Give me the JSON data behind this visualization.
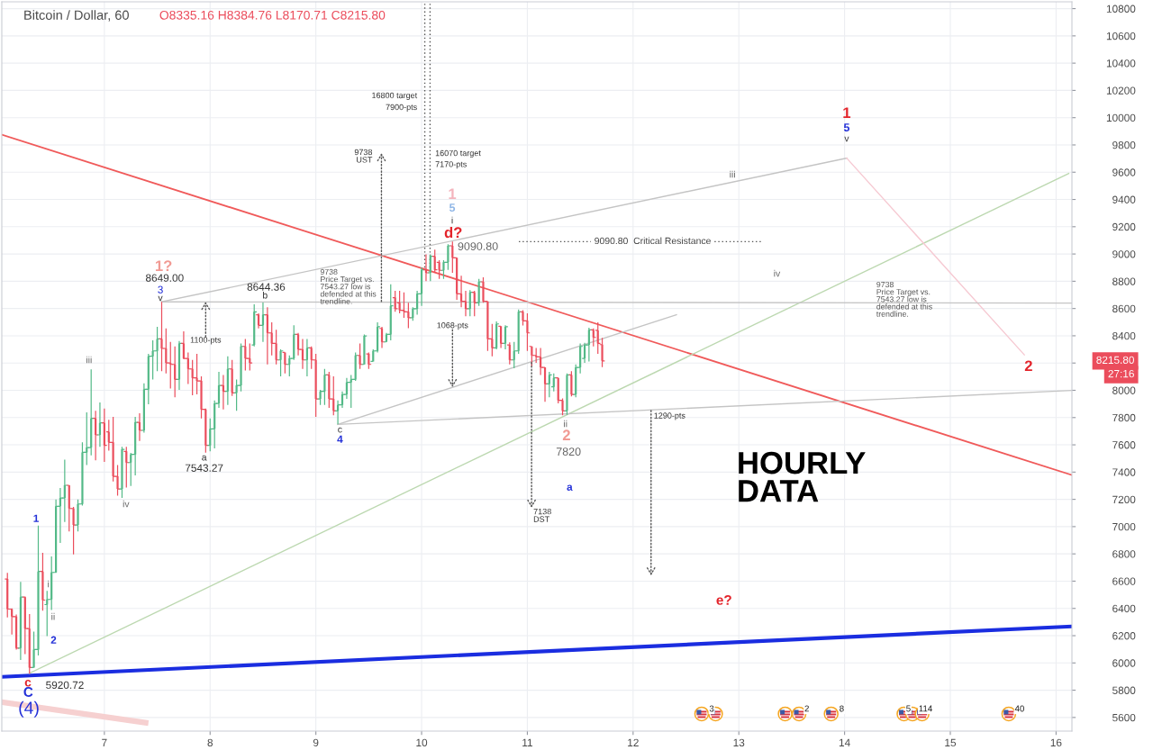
{
  "chart_data": {
    "type": "candlestick",
    "title": "Bitcoin / Dollar, 60",
    "subtitle": "O8335.16 H8384.76 L8170.71 C8215.80",
    "x": [
      6.083,
      6.125,
      6.167,
      6.208,
      6.25,
      6.292,
      6.333,
      6.375,
      6.417,
      6.458,
      6.5,
      6.542,
      6.583,
      6.625,
      6.667,
      6.708,
      6.75,
      6.792,
      6.833,
      6.875,
      6.917,
      6.958,
      7,
      7.042,
      7.083,
      7.125,
      7.167,
      7.208,
      7.25,
      7.292,
      7.333,
      7.375,
      7.417,
      7.458,
      7.5,
      7.542,
      7.583,
      7.625,
      7.667,
      7.708,
      7.75,
      7.792,
      7.833,
      7.875,
      7.917,
      7.958,
      8,
      8.042,
      8.083,
      8.125,
      8.167,
      8.208,
      8.25,
      8.292,
      8.333,
      8.375,
      8.417,
      8.458,
      8.5,
      8.542,
      8.583,
      8.625,
      8.667,
      8.708,
      8.75,
      8.792,
      8.833,
      8.875,
      8.917,
      8.958,
      9,
      9.042,
      9.083,
      9.125,
      9.167,
      9.208,
      9.25,
      9.292,
      9.333,
      9.375,
      9.417,
      9.458,
      9.5,
      9.542,
      9.583,
      9.625,
      9.667,
      9.708,
      9.75,
      9.792,
      9.833,
      9.875,
      9.917,
      9.958,
      10,
      10.042,
      10.083,
      10.125,
      10.167,
      10.208,
      10.25,
      10.292,
      10.333,
      10.375,
      10.417,
      10.458,
      10.5,
      10.542,
      10.583,
      10.625,
      10.667,
      10.708,
      10.75,
      10.792,
      10.833,
      10.875,
      10.917,
      10.958,
      11,
      11.042,
      11.083,
      11.125,
      11.167,
      11.208,
      11.25,
      11.292,
      11.333,
      11.375,
      11.417,
      11.458,
      11.5,
      11.542,
      11.583,
      11.625,
      11.667,
      11.708
    ],
    "ohlc": [
      [
        6616,
        6660,
        6334,
        6395
      ],
      [
        6395,
        6400,
        6208,
        6340
      ],
      [
        6340,
        6356,
        6098,
        6109
      ],
      [
        6109,
        6594,
        6021,
        6483
      ],
      [
        6483,
        6488,
        6065,
        6252
      ],
      [
        6252,
        6358,
        5920.72,
        5966
      ],
      [
        5966,
        6230,
        5966,
        6098
      ],
      [
        6098,
        7008,
        6054,
        6671
      ],
      [
        6671,
        6807,
        6384,
        6461
      ],
      [
        6428,
        6528,
        6197,
        6466
      ],
      [
        6466,
        6781,
        6389,
        6664
      ],
      [
        6664,
        7199,
        6660,
        7149
      ],
      [
        7149,
        7283,
        6880,
        7210
      ],
      [
        7210,
        7492,
        7034,
        7303
      ],
      [
        7303,
        7303,
        6964,
        7133
      ],
      [
        7133,
        7144,
        6796,
        7012
      ],
      [
        7012,
        7199,
        6964,
        7166
      ],
      [
        7166,
        7618,
        7155,
        7545
      ],
      [
        7545,
        7838,
        7452,
        7580
      ],
      [
        7580,
        8153,
        7523,
        7794
      ],
      [
        7794,
        7849,
        7486,
        7673
      ],
      [
        7673,
        7911,
        7585,
        7761
      ],
      [
        7761,
        7867,
        7475,
        7596
      ],
      [
        7695,
        7783,
        7558,
        7618
      ],
      [
        7618,
        7805,
        7331,
        7369
      ],
      [
        7369,
        7452,
        7228,
        7276
      ],
      [
        7276,
        7585,
        7210,
        7567
      ],
      [
        7552,
        7585,
        7287,
        7470
      ],
      [
        7470,
        7541,
        7298,
        7530
      ],
      [
        7530,
        7805,
        7375,
        7765
      ],
      [
        7765,
        7831,
        7629,
        7706
      ],
      [
        7706,
        8051,
        7690,
        8007
      ],
      [
        8007,
        8267,
        7897,
        8250
      ],
      [
        8250,
        8366,
        8080,
        8289
      ],
      [
        8289,
        8466,
        8140,
        8377
      ],
      [
        8377,
        8649,
        8140,
        8307
      ],
      [
        8307,
        8454,
        8124,
        8201
      ],
      [
        8201,
        8355,
        8014,
        8190
      ],
      [
        8190,
        8322,
        7948,
        8080
      ],
      [
        8080,
        8362,
        8003,
        8344
      ],
      [
        8344,
        8433,
        8228,
        8234
      ],
      [
        8234,
        8278,
        8047,
        8157
      ],
      [
        8157,
        8223,
        7963,
        8091
      ],
      [
        8091,
        8267,
        7970,
        8069
      ],
      [
        8069,
        8102,
        7794,
        7860
      ],
      [
        7860,
        7867,
        7543.27,
        7596
      ],
      [
        7596,
        7794,
        7552,
        7717
      ],
      [
        7717,
        7926,
        7574,
        7904
      ],
      [
        7904,
        8135,
        7871,
        8036
      ],
      [
        8036,
        8113,
        7860,
        7992
      ],
      [
        7992,
        8250,
        7893,
        8157
      ],
      [
        8157,
        8223,
        7959,
        7981
      ],
      [
        7981,
        8080,
        7849,
        8036
      ],
      [
        8036,
        8344,
        7992,
        8322
      ],
      [
        8322,
        8377,
        8146,
        8234
      ],
      [
        8234,
        8344,
        8146,
        8201
      ],
      [
        8333,
        8631,
        8322,
        8576
      ],
      [
        8554,
        8565,
        8454,
        8477
      ],
      [
        8477,
        8644.36,
        8355,
        8554
      ],
      [
        8554,
        8609,
        8190,
        8421
      ],
      [
        8421,
        8499,
        8256,
        8344
      ],
      [
        8344,
        8444,
        8190,
        8223
      ],
      [
        8223,
        8300,
        8102,
        8289
      ],
      [
        8278,
        8278,
        8124,
        8190
      ],
      [
        8190,
        8256,
        8102,
        8234
      ],
      [
        8234,
        8477,
        8223,
        8410
      ],
      [
        8410,
        8421,
        8256,
        8300
      ],
      [
        8300,
        8377,
        8157,
        8223
      ],
      [
        8223,
        8377,
        8102,
        8311
      ],
      [
        8311,
        8322,
        8157,
        8223
      ],
      [
        8223,
        8267,
        7805,
        7937
      ],
      [
        7937,
        8003,
        7893,
        7992
      ],
      [
        7992,
        8157,
        7893,
        8113
      ],
      [
        8113,
        8135,
        7871,
        7937
      ],
      [
        7937,
        8102,
        7816,
        7849
      ],
      [
        7849,
        7926,
        7750,
        7893
      ],
      [
        7893,
        7992,
        7871,
        7970
      ],
      [
        7970,
        8091,
        7937,
        8058
      ],
      [
        8058,
        8113,
        7871,
        8080
      ],
      [
        8080,
        8278,
        8069,
        8256
      ],
      [
        8256,
        8344,
        8157,
        8190
      ],
      [
        8190,
        8410,
        8190,
        8399
      ],
      [
        8267,
        8278,
        8157,
        8190
      ],
      [
        8212,
        8300,
        8212,
        8289
      ],
      [
        8289,
        8499,
        8278,
        8466
      ],
      [
        8454,
        8466,
        8311,
        8355
      ],
      [
        8355,
        8421,
        8355,
        8410
      ],
      [
        8410,
        8778,
        8366,
        8620
      ],
      [
        8680,
        8730,
        8576,
        8598
      ],
      [
        8642,
        8730,
        8565,
        8587
      ],
      [
        8587,
        8719,
        8532,
        8576
      ],
      [
        8576,
        8642,
        8455,
        8532
      ],
      [
        8532,
        8609,
        8510,
        8598
      ],
      [
        8598,
        8730,
        8554,
        8708
      ],
      [
        8708,
        8902,
        8620,
        8884
      ],
      [
        8884,
        8998,
        8800,
        8862
      ],
      [
        8862,
        8998,
        8800,
        8983
      ],
      [
        8983,
        9032,
        8862,
        8884
      ],
      [
        8939,
        8954,
        8818,
        8880
      ],
      [
        8880,
        8954,
        8818,
        8939
      ],
      [
        8939,
        9071,
        8884,
        9060
      ],
      [
        9060,
        9090.8,
        8862,
        8972
      ],
      [
        8972,
        8972,
        8664,
        8708
      ],
      [
        8708,
        8840,
        8609,
        8653
      ],
      [
        8653,
        8730,
        8543,
        8598
      ],
      [
        8598,
        8734,
        8543,
        8719
      ],
      [
        8719,
        8730,
        8543,
        8642
      ],
      [
        8642,
        8818,
        8620,
        8796
      ],
      [
        8796,
        8829,
        8642,
        8653
      ],
      [
        8653,
        8653,
        8289,
        8377
      ],
      [
        8377,
        8487,
        8250,
        8311
      ],
      [
        8311,
        8505,
        8300,
        8487
      ],
      [
        8470,
        8470,
        8311,
        8344
      ],
      [
        8344,
        8477,
        8300,
        8466
      ],
      [
        8333,
        8351,
        8190,
        8223
      ],
      [
        8223,
        8355,
        8162,
        8289
      ],
      [
        8289,
        8593,
        8267,
        8576
      ],
      [
        8576,
        8587,
        8476,
        8510
      ],
      [
        8510,
        8565,
        8289,
        8421
      ],
      [
        8322,
        8322,
        8175,
        8256
      ],
      [
        8256,
        8311,
        8201,
        8245
      ],
      [
        8245,
        8311,
        8113,
        8168
      ],
      [
        8168,
        8168,
        7915,
        8047
      ],
      [
        8047,
        8135,
        7948,
        8113
      ],
      [
        8025,
        8124,
        7992,
        8091
      ],
      [
        8091,
        8091,
        7904,
        7926
      ],
      [
        7926,
        7941,
        7816,
        7849
      ],
      [
        7849,
        8124,
        7820,
        8113
      ],
      [
        8113,
        8140,
        7955,
        7970
      ],
      [
        7970,
        8190,
        7948,
        8168
      ],
      [
        8168,
        8344,
        8124,
        8322
      ],
      [
        8234,
        8349,
        8201,
        8333
      ],
      [
        8333,
        8459,
        8212,
        8443
      ],
      [
        8443,
        8454,
        8322,
        8388
      ],
      [
        8440,
        8498,
        8267,
        8344
      ],
      [
        8335.16,
        8384.76,
        8170.71,
        8215.8
      ]
    ],
    "colors": [
      "#eb4d5c",
      "#eb4d5c",
      "#eb4d5c",
      "#53b987",
      "#eb4d5c",
      "#eb4d5c",
      "#53b987",
      "#53b987",
      "#eb4d5c",
      "#53b987",
      "#53b987",
      "#53b987",
      "#53b987",
      "#53b987",
      "#eb4d5c",
      "#eb4d5c",
      "#53b987",
      "#53b987",
      "#53b987",
      "#53b987",
      "#eb4d5c",
      "#53b987",
      "#eb4d5c",
      "#eb4d5c",
      "#eb4d5c",
      "#eb4d5c",
      "#53b987",
      "#eb4d5c",
      "#53b987",
      "#53b987",
      "#eb4d5c",
      "#53b987",
      "#53b987",
      "#53b987",
      "#53b987",
      "#eb4d5c",
      "#eb4d5c",
      "#eb4d5c",
      "#eb4d5c",
      "#53b987",
      "#eb4d5c",
      "#eb4d5c",
      "#eb4d5c",
      "#eb4d5c",
      "#eb4d5c",
      "#eb4d5c",
      "#53b987",
      "#53b987",
      "#53b987",
      "#eb4d5c",
      "#53b987",
      "#eb4d5c",
      "#53b987",
      "#53b987",
      "#eb4d5c",
      "#eb4d5c",
      "#53b987",
      "#eb4d5c",
      "#53b987",
      "#eb4d5c",
      "#eb4d5c",
      "#eb4d5c",
      "#53b987",
      "#eb4d5c",
      "#53b987",
      "#53b987",
      "#eb4d5c",
      "#eb4d5c",
      "#53b987",
      "#eb4d5c",
      "#eb4d5c",
      "#53b987",
      "#53b987",
      "#eb4d5c",
      "#eb4d5c",
      "#53b987",
      "#53b987",
      "#53b987",
      "#53b987",
      "#53b987",
      "#eb4d5c",
      "#53b987",
      "#eb4d5c",
      "#53b987",
      "#53b987",
      "#eb4d5c",
      "#53b987",
      "#53b987",
      "#eb4d5c",
      "#eb4d5c",
      "#eb4d5c",
      "#eb4d5c",
      "#53b987",
      "#53b987",
      "#53b987",
      "#eb4d5c",
      "#53b987",
      "#eb4d5c",
      "#eb4d5c",
      "#53b987",
      "#53b987",
      "#eb4d5c",
      "#eb4d5c",
      "#eb4d5c",
      "#eb4d5c",
      "#53b987",
      "#eb4d5c",
      "#53b987",
      "#eb4d5c",
      "#eb4d5c",
      "#eb4d5c",
      "#53b987",
      "#eb4d5c",
      "#53b987",
      "#eb4d5c",
      "#53b987",
      "#53b987",
      "#eb4d5c",
      "#eb4d5c",
      "#eb4d5c",
      "#eb4d5c",
      "#eb4d5c",
      "#eb4d5c",
      "#53b987",
      "#53b987",
      "#eb4d5c",
      "#eb4d5c",
      "#53b987",
      "#eb4d5c",
      "#53b987",
      "#53b987",
      "#53b987",
      "#53b987",
      "#eb4d5c",
      "#eb4d5c",
      "#eb4d5c"
    ],
    "series": [
      {
        "type": "line",
        "x": [
          6.03,
          16.15
        ],
        "values": [
          9875,
          7378
        ],
        "color": "#f05a5a",
        "line_style": "solid"
      },
      {
        "type": "line",
        "x": [
          6.03,
          16.15
        ],
        "values": [
          5898,
          6268
        ],
        "color": "#1a2de0",
        "line_style": "solid"
      },
      {
        "type": "line",
        "x": [
          6.03,
          7.39
        ],
        "values": [
          5713,
          5561
        ],
        "color": "#f6d0d0",
        "line_style": "solid"
      },
      {
        "type": "line",
        "x": [
          6.29,
          16.12
        ],
        "values": [
          5924,
          9591
        ],
        "color": "#bcd8b0",
        "line_style": "solid"
      },
      {
        "type": "line",
        "x": [
          7.542,
          14.02
        ],
        "values": [
          8649,
          9703
        ],
        "color": "#c4c4c4",
        "line_style": "solid"
      },
      {
        "type": "line",
        "x": [
          14.02,
          15.7
        ],
        "values": [
          9703,
          8260
        ],
        "color": "#f6c9d2",
        "line_style": "solid"
      },
      {
        "type": "line",
        "x": [
          7.542,
          16.15
        ],
        "values": [
          8649,
          8640
        ],
        "color": "#c4c4c4",
        "line_style": "solid"
      },
      {
        "type": "line",
        "x": [
          9.208,
          16.15
        ],
        "values": [
          7750,
          7999
        ],
        "color": "#c4c4c4",
        "line_style": "solid"
      },
      {
        "type": "line",
        "x": [
          9.208,
          12.41
        ],
        "values": [
          7750,
          8554
        ],
        "color": "#c4c4c4",
        "line_style": "solid"
      },
      {
        "type": "line",
        "x": [
          10.03,
          10.03
        ],
        "values": [
          8900,
          10850
        ],
        "color": "#555555",
        "line_style": "dotted"
      },
      {
        "type": "line",
        "x": [
          10.08,
          10.08
        ],
        "values": [
          8900,
          10850
        ],
        "color": "#555555",
        "line_style": "dotted"
      },
      {
        "type": "line",
        "x": [
          10.92,
          11.6
        ],
        "values": [
          9090.8,
          9090.8
        ],
        "color": "#555555",
        "line_style": "dotted"
      },
      {
        "type": "line",
        "x": [
          12.77,
          13.22
        ],
        "values": [
          9090.8,
          9090.8
        ],
        "color": "#555555",
        "line_style": "dotted"
      }
    ],
    "xlim": [
      6.03,
      16.15
    ],
    "ylim": [
      5500,
      10850
    ],
    "xticks": [
      7,
      8,
      9,
      10,
      11,
      12,
      13,
      14,
      15,
      16
    ],
    "yticks": [
      5600,
      5800,
      6000,
      6200,
      6400,
      6600,
      6800,
      7000,
      7200,
      7400,
      7600,
      7800,
      8000,
      {
        "value": 8200,
        "label": null
      },
      8400,
      8600,
      8800,
      9000,
      9200,
      9400,
      9600,
      9800,
      10000,
      10200,
      10400,
      10600,
      10800
    ],
    "grid": true,
    "annotations": [
      "1?",
      "8649.00",
      "3",
      "v",
      "8644.36",
      "b",
      "a",
      "7543.27",
      "iii",
      "iv",
      "i",
      "ii",
      "1",
      "2",
      "c",
      "C",
      "(4)",
      "5920.72",
      "c",
      "4",
      "9738\nPrice Target vs.\n7543.27 low is\ndefended at this\ntrendline.",
      {
        "text": "9738\nUST",
        "x": 9.62,
        "y": 8647
      },
      "16800 target\n7900-pts",
      "16070 target\n7170-pts",
      "1",
      "5",
      "i",
      "d?",
      "9090.80",
      {
        "text": "1068-pts",
        "x": 10.292,
        "y": 8023
      },
      {
        "text": "7138\nDST",
        "x": 11.04,
        "y": 8210
      },
      "ii",
      "2",
      "7820",
      "a",
      {
        "text": "1290-pts",
        "x": 12.17,
        "y": 7856
      },
      "9090.80  Critical Resistance",
      "HOURLY\nDATA",
      "e?",
      "1",
      "5",
      "v",
      "iii",
      "iv",
      "9738\nPrice Target vs.\n7543.27 low is\ndefended at this\ntrendline.",
      "2",
      "8215.80",
      "27:16",
      "3",
      "2",
      "8",
      "5",
      "114",
      "40",
      {
        "text": "1100-pts",
        "x": 7.958,
        "y": 8649
      }
    ]
  }
}
